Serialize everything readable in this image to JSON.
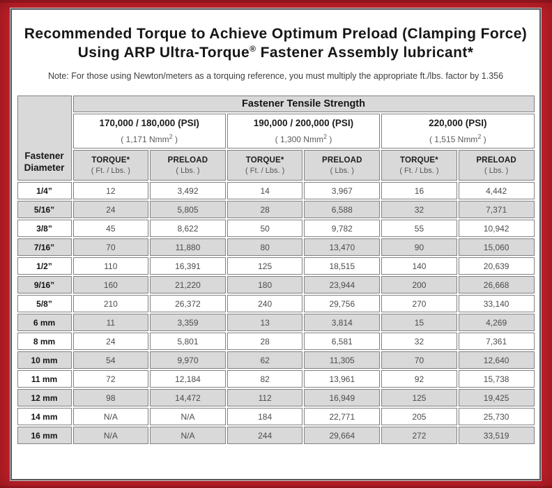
{
  "colors": {
    "frame_red": "#c2212b",
    "page_border": "#58585c",
    "cell_gray": "#d9d9d9",
    "cell_border": "#808083"
  },
  "header": {
    "title_line1": "Recommended Torque to Achieve Optimum Preload (Clamping Force)",
    "title_line2_prefix": "Using ARP Ultra-Torque",
    "registered_mark": "®",
    "title_line2_suffix": " Fastener Assembly lubricant*",
    "note": "Note: For those using Newton/meters as a torquing reference, you must multiply the appropriate ft./lbs. factor by 1.356"
  },
  "table": {
    "tensile_strength_header": "Fastener Tensile Strength",
    "diameter_header_line1": "Fastener",
    "diameter_header_line2": "Diameter",
    "strength_groups": [
      {
        "psi": "170,000 / 180,000 (PSI)",
        "nmm_open": "( 1,171 Nmm",
        "nmm_sup": "2",
        "nmm_close": " )"
      },
      {
        "psi": "190,000 / 200,000 (PSI)",
        "nmm_open": "( 1,300 Nmm",
        "nmm_sup": "2",
        "nmm_close": " )"
      },
      {
        "psi": "220,000 (PSI)",
        "nmm_open": "( 1,515 Nmm",
        "nmm_sup": "2",
        "nmm_close": " )"
      }
    ],
    "column_headers": {
      "torque_label": "TORQUE*",
      "torque_unit": "( Ft. / Lbs. )",
      "preload_label": "PRELOAD",
      "preload_unit": "( Lbs. )"
    },
    "rows": [
      {
        "diameter": "1/4”",
        "values": [
          "12",
          "3,492",
          "14",
          "3,967",
          "16",
          "4,442"
        ]
      },
      {
        "diameter": "5/16”",
        "values": [
          "24",
          "5,805",
          "28",
          "6,588",
          "32",
          "7,371"
        ]
      },
      {
        "diameter": "3/8”",
        "values": [
          "45",
          "8,622",
          "50",
          "9,782",
          "55",
          "10,942"
        ]
      },
      {
        "diameter": "7/16”",
        "values": [
          "70",
          "11,880",
          "80",
          "13,470",
          "90",
          "15,060"
        ]
      },
      {
        "diameter": "1/2”",
        "values": [
          "110",
          "16,391",
          "125",
          "18,515",
          "140",
          "20,639"
        ]
      },
      {
        "diameter": "9/16”",
        "values": [
          "160",
          "21,220",
          "180",
          "23,944",
          "200",
          "26,668"
        ]
      },
      {
        "diameter": "5/8”",
        "values": [
          "210",
          "26,372",
          "240",
          "29,756",
          "270",
          "33,140"
        ]
      },
      {
        "diameter": "6 mm",
        "values": [
          "11",
          "3,359",
          "13",
          "3,814",
          "15",
          "4,269"
        ]
      },
      {
        "diameter": "8 mm",
        "values": [
          "24",
          "5,801",
          "28",
          "6,581",
          "32",
          "7,361"
        ]
      },
      {
        "diameter": "10 mm",
        "values": [
          "54",
          "9,970",
          "62",
          "11,305",
          "70",
          "12,640"
        ]
      },
      {
        "diameter": "11 mm",
        "values": [
          "72",
          "12,184",
          "82",
          "13,961",
          "92",
          "15,738"
        ]
      },
      {
        "diameter": "12 mm",
        "values": [
          "98",
          "14,472",
          "112",
          "16,949",
          "125",
          "19,425"
        ]
      },
      {
        "diameter": "14 mm",
        "values": [
          "N/A",
          "N/A",
          "184",
          "22,771",
          "205",
          "25,730"
        ]
      },
      {
        "diameter": "16 mm",
        "values": [
          "N/A",
          "N/A",
          "244",
          "29,664",
          "272",
          "33,519"
        ]
      }
    ]
  }
}
